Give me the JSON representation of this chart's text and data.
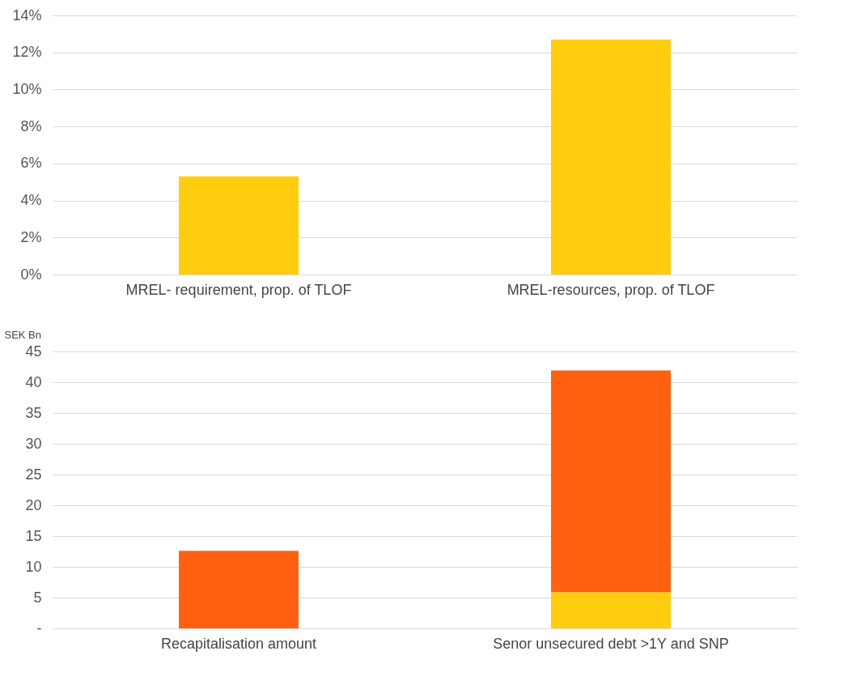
{
  "chart_data": [
    {
      "type": "bar",
      "categories": [
        "MREL- requirement, prop. of TLOF",
        "MREL-resources, prop. of TLOF"
      ],
      "series": [
        {
          "color": "#ffcd0d",
          "values": [
            5.3,
            12.7
          ]
        }
      ],
      "ylim": [
        0,
        14
      ],
      "yticks": [
        {
          "value": 0,
          "label": "0%"
        },
        {
          "value": 2,
          "label": "2%"
        },
        {
          "value": 4,
          "label": "4%"
        },
        {
          "value": 6,
          "label": "6%"
        },
        {
          "value": 8,
          "label": "8%"
        },
        {
          "value": 10,
          "label": "10%"
        },
        {
          "value": 12,
          "label": "12%"
        },
        {
          "value": 14,
          "label": "14%"
        }
      ],
      "grid": "y"
    },
    {
      "type": "bar",
      "ylabel": "SEK Bn",
      "categories": [
        "Recapitalisation amount",
        "Senor unsecured debt >1Y and SNP"
      ],
      "stacked": true,
      "series": [
        {
          "color": "#ffcd0d",
          "values": [
            null,
            5.9
          ]
        },
        {
          "color": "#ff6110",
          "values": [
            12.6,
            36.0
          ]
        }
      ],
      "ylim": [
        0,
        45
      ],
      "yticks": [
        {
          "value": 0,
          "label": "-"
        },
        5,
        10,
        15,
        20,
        25,
        30,
        35,
        40,
        45
      ],
      "grid": "y"
    }
  ]
}
